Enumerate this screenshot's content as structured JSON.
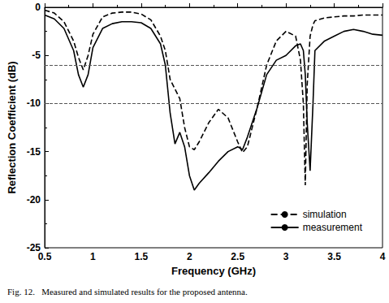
{
  "chart_data": {
    "type": "line",
    "caption": "Fig. 12.   Measured and simulated results for the proposed antenna.",
    "x_label": "Frequency (GHz)",
    "y_label": "Reflection Coefficient (dB)",
    "x": [
      0.5,
      0.6,
      0.7,
      0.8,
      0.85,
      0.9,
      0.95,
      1.0,
      1.1,
      1.2,
      1.3,
      1.4,
      1.5,
      1.6,
      1.7,
      1.75,
      1.8,
      1.85,
      1.9,
      1.95,
      2.0,
      2.05,
      2.1,
      2.2,
      2.3,
      2.4,
      2.5,
      2.55,
      2.6,
      2.7,
      2.8,
      2.9,
      3.0,
      3.1,
      3.15,
      3.18,
      3.2,
      3.22,
      3.25,
      3.28,
      3.3,
      3.4,
      3.5,
      3.6,
      3.7,
      3.8,
      3.9,
      4.0
    ],
    "series": [
      {
        "name": "simulation",
        "color": "#000000",
        "line_style": "dashed",
        "values": [
          -0.3,
          -0.6,
          -1.5,
          -3.5,
          -5.2,
          -6.5,
          -5.0,
          -2.8,
          -1.0,
          -0.6,
          -0.5,
          -0.5,
          -0.7,
          -1.3,
          -3.0,
          -4.5,
          -7.5,
          -8.5,
          -9.5,
          -12.5,
          -14.5,
          -14.8,
          -14.0,
          -12.0,
          -10.6,
          -11.5,
          -14.0,
          -15.1,
          -14.5,
          -10.5,
          -6.0,
          -3.5,
          -2.5,
          -3.0,
          -5.5,
          -10.0,
          -18.5,
          -8.0,
          -3.0,
          -1.8,
          -1.4,
          -1.1,
          -1.0,
          -0.9,
          -0.9,
          -0.8,
          -0.8,
          -0.8
        ]
      },
      {
        "name": "measurement",
        "color": "#000000",
        "line_style": "solid",
        "values": [
          -0.8,
          -1.2,
          -2.2,
          -4.5,
          -7.0,
          -8.3,
          -7.0,
          -4.2,
          -2.2,
          -1.7,
          -1.5,
          -1.5,
          -1.6,
          -2.2,
          -3.8,
          -6.0,
          -11.0,
          -14.2,
          -13.0,
          -14.5,
          -17.5,
          -19.0,
          -18.3,
          -17.2,
          -16.0,
          -15.0,
          -14.5,
          -14.8,
          -13.5,
          -10.5,
          -7.0,
          -5.5,
          -5.0,
          -4.0,
          -3.8,
          -4.5,
          -7.0,
          -12.0,
          -17.0,
          -10.0,
          -4.5,
          -3.5,
          -3.0,
          -2.5,
          -2.3,
          -2.5,
          -2.8,
          -2.9
        ]
      }
    ],
    "hlines": [
      -6,
      -10
    ],
    "xlim": [
      0.5,
      4
    ],
    "xticks": [
      0.5,
      1,
      1.5,
      2,
      2.5,
      3,
      3.5,
      4
    ],
    "ylim": [
      -25,
      0
    ],
    "yticks": [
      -25,
      -20,
      -15,
      -10,
      -5,
      0
    ],
    "grid": false,
    "legend": "lower right"
  }
}
